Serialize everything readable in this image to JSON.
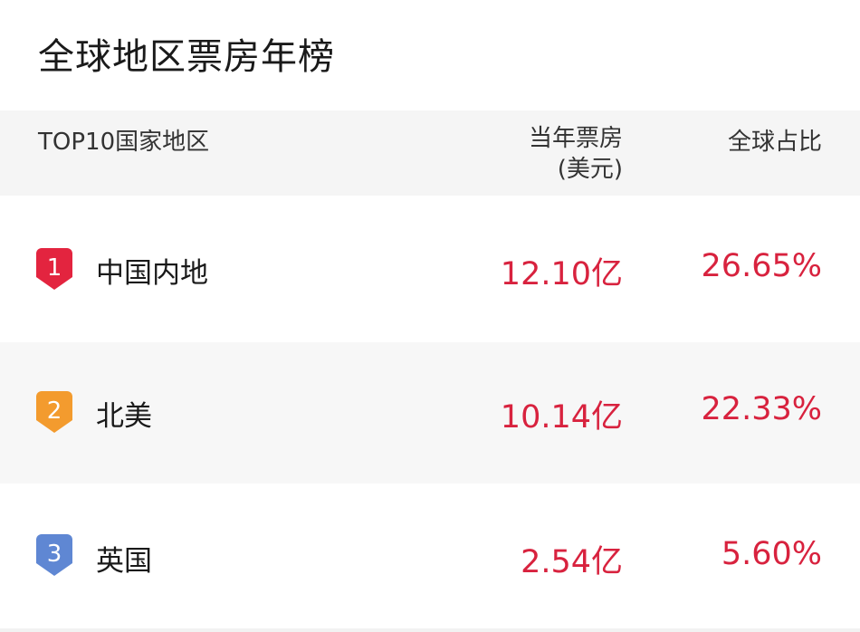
{
  "title": "全球地区票房年榜",
  "header": {
    "col_region": "TOP10国家地区",
    "col_boxoffice": "当年票房",
    "col_boxoffice_unit": "(美元)",
    "col_share": "全球占比"
  },
  "rows": [
    {
      "rank": "1",
      "region": "中国内地",
      "boxoffice": "12.10亿",
      "share": "26.65%",
      "badge_color": "#e3243f"
    },
    {
      "rank": "2",
      "region": "北美",
      "boxoffice": "10.14亿",
      "share": "22.33%",
      "badge_color": "#f39b2e"
    },
    {
      "rank": "3",
      "region": "英国",
      "boxoffice": "2.54亿",
      "share": "5.60%",
      "badge_color": "#5f87d3"
    }
  ],
  "value_color": "#d8223e"
}
